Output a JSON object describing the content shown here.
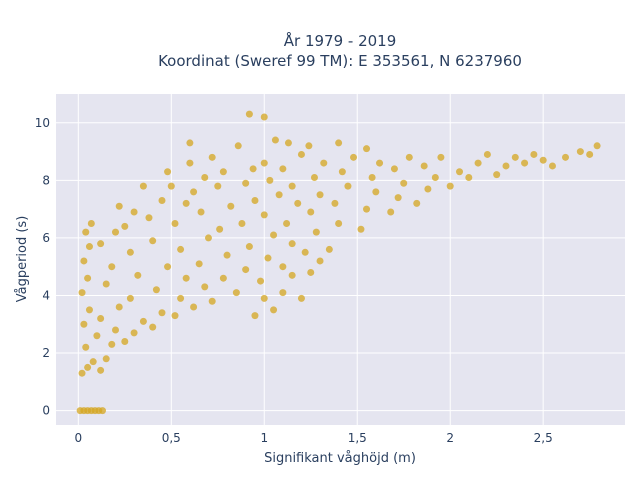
{
  "chart_data": {
    "type": "scatter",
    "title_line1": "År 1979 - 2019",
    "title_line2": "Koordinat (Sweref 99 TM): E 353561, N 6237960",
    "xlabel": "Signifikant våghöjd (m)",
    "ylabel": "Vågperiod (s)",
    "xlim": [
      -0.12,
      2.94
    ],
    "ylim": [
      -0.5,
      11
    ],
    "x_ticks": [
      0,
      0.5,
      1,
      1.5,
      2,
      2.5
    ],
    "x_tick_labels": [
      "0",
      "0,5",
      "1",
      "1,5",
      "2",
      "2,5"
    ],
    "y_ticks": [
      0,
      2,
      4,
      6,
      8,
      10
    ],
    "y_tick_labels": [
      "0",
      "2",
      "4",
      "6",
      "8",
      "10"
    ],
    "grid": true,
    "marker_color": "#D4A520",
    "plot_bgcolor": "#E5E5F0",
    "series": [
      {
        "values": [
          [
            0.01,
            0
          ],
          [
            0.03,
            0
          ],
          [
            0.05,
            0
          ],
          [
            0.07,
            0
          ],
          [
            0.09,
            0
          ],
          [
            0.11,
            0
          ],
          [
            0.13,
            0
          ],
          [
            0.02,
            1.3
          ],
          [
            0.05,
            1.5
          ],
          [
            0.08,
            1.7
          ],
          [
            0.12,
            1.4
          ],
          [
            0.15,
            1.8
          ],
          [
            0.04,
            2.2
          ],
          [
            0.1,
            2.6
          ],
          [
            0.18,
            2.3
          ],
          [
            0.03,
            3.0
          ],
          [
            0.06,
            3.5
          ],
          [
            0.02,
            4.1
          ],
          [
            0.05,
            4.6
          ],
          [
            0.03,
            5.2
          ],
          [
            0.06,
            5.7
          ],
          [
            0.04,
            6.2
          ],
          [
            0.07,
            6.5
          ],
          [
            0.12,
            3.2
          ],
          [
            0.2,
            2.8
          ],
          [
            0.25,
            2.4
          ],
          [
            0.22,
            3.6
          ],
          [
            0.15,
            4.4
          ],
          [
            0.18,
            5.0
          ],
          [
            0.12,
            5.8
          ],
          [
            0.2,
            6.2
          ],
          [
            0.3,
            2.7
          ],
          [
            0.35,
            3.1
          ],
          [
            0.28,
            3.9
          ],
          [
            0.32,
            4.7
          ],
          [
            0.28,
            5.5
          ],
          [
            0.25,
            6.4
          ],
          [
            0.3,
            6.9
          ],
          [
            0.22,
            7.1
          ],
          [
            0.4,
            2.9
          ],
          [
            0.45,
            3.4
          ],
          [
            0.42,
            4.2
          ],
          [
            0.48,
            5.0
          ],
          [
            0.4,
            5.9
          ],
          [
            0.38,
            6.7
          ],
          [
            0.45,
            7.3
          ],
          [
            0.35,
            7.8
          ],
          [
            0.52,
            3.3
          ],
          [
            0.55,
            3.9
          ],
          [
            0.58,
            4.6
          ],
          [
            0.55,
            5.6
          ],
          [
            0.52,
            6.5
          ],
          [
            0.58,
            7.2
          ],
          [
            0.5,
            7.8
          ],
          [
            0.48,
            8.3
          ],
          [
            0.62,
            3.6
          ],
          [
            0.68,
            4.3
          ],
          [
            0.65,
            5.1
          ],
          [
            0.7,
            6.0
          ],
          [
            0.66,
            6.9
          ],
          [
            0.62,
            7.6
          ],
          [
            0.68,
            8.1
          ],
          [
            0.6,
            8.6
          ],
          [
            0.72,
            3.8
          ],
          [
            0.78,
            4.6
          ],
          [
            0.8,
            5.4
          ],
          [
            0.76,
            6.3
          ],
          [
            0.82,
            7.1
          ],
          [
            0.75,
            7.8
          ],
          [
            0.78,
            8.3
          ],
          [
            0.72,
            8.8
          ],
          [
            0.85,
            4.1
          ],
          [
            0.9,
            4.9
          ],
          [
            0.92,
            5.7
          ],
          [
            0.88,
            6.5
          ],
          [
            0.95,
            7.3
          ],
          [
            0.9,
            7.9
          ],
          [
            0.94,
            8.4
          ],
          [
            0.86,
            9.2
          ],
          [
            0.98,
            4.5
          ],
          [
            1.02,
            5.3
          ],
          [
            1.05,
            6.1
          ],
          [
            1.0,
            6.8
          ],
          [
            1.08,
            7.5
          ],
          [
            1.03,
            8.0
          ],
          [
            1.0,
            8.6
          ],
          [
            1.06,
            9.4
          ],
          [
            1.1,
            5.0
          ],
          [
            1.15,
            5.8
          ],
          [
            1.12,
            6.5
          ],
          [
            1.18,
            7.2
          ],
          [
            1.15,
            7.8
          ],
          [
            1.1,
            8.4
          ],
          [
            1.2,
            8.9
          ],
          [
            1.13,
            9.3
          ],
          [
            1.22,
            5.5
          ],
          [
            1.28,
            6.2
          ],
          [
            1.25,
            6.9
          ],
          [
            1.3,
            7.5
          ],
          [
            1.27,
            8.1
          ],
          [
            1.32,
            8.6
          ],
          [
            1.24,
            9.2
          ],
          [
            1.35,
            5.6
          ],
          [
            1.4,
            6.5
          ],
          [
            1.38,
            7.2
          ],
          [
            1.45,
            7.8
          ],
          [
            1.42,
            8.3
          ],
          [
            1.48,
            8.8
          ],
          [
            1.4,
            9.3
          ],
          [
            1.52,
            6.3
          ],
          [
            1.55,
            7.0
          ],
          [
            1.6,
            7.6
          ],
          [
            1.58,
            8.1
          ],
          [
            1.62,
            8.6
          ],
          [
            1.55,
            9.1
          ],
          [
            1.68,
            6.9
          ],
          [
            1.72,
            7.4
          ],
          [
            1.75,
            7.9
          ],
          [
            1.7,
            8.4
          ],
          [
            1.78,
            8.8
          ],
          [
            1.82,
            7.2
          ],
          [
            1.88,
            7.7
          ],
          [
            1.92,
            8.1
          ],
          [
            1.86,
            8.5
          ],
          [
            1.95,
            8.8
          ],
          [
            2.0,
            7.8
          ],
          [
            2.05,
            8.3
          ],
          [
            2.1,
            8.1
          ],
          [
            2.15,
            8.6
          ],
          [
            2.2,
            8.9
          ],
          [
            2.25,
            8.2
          ],
          [
            2.3,
            8.5
          ],
          [
            2.35,
            8.8
          ],
          [
            2.4,
            8.6
          ],
          [
            2.45,
            8.9
          ],
          [
            2.5,
            8.7
          ],
          [
            2.55,
            8.5
          ],
          [
            1.0,
            10.2
          ],
          [
            0.92,
            10.3
          ],
          [
            0.6,
            9.3
          ],
          [
            2.7,
            9.0
          ],
          [
            2.75,
            8.9
          ],
          [
            2.79,
            9.2
          ],
          [
            2.62,
            8.8
          ],
          [
            0.95,
            3.3
          ],
          [
            1.0,
            3.9
          ],
          [
            1.05,
            3.5
          ],
          [
            1.1,
            4.1
          ],
          [
            1.15,
            4.7
          ],
          [
            1.2,
            3.9
          ],
          [
            1.25,
            4.8
          ],
          [
            1.3,
            5.2
          ]
        ]
      }
    ]
  }
}
